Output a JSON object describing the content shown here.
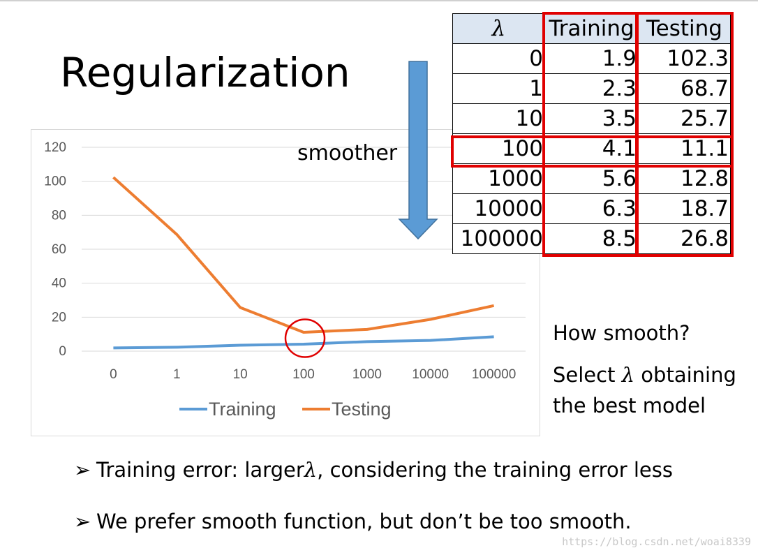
{
  "slide": {
    "title": "Regularization",
    "arrow_label": "smoother",
    "side_question": "How smooth?",
    "side_select_pre": "Select ",
    "lambda_symbol": "λ",
    "side_select_post": " obtaining",
    "side_select_line2": "the best model",
    "bullet_marker": "➢",
    "bullet1_pre": "Training error: larger",
    "bullet1_post": ", considering the training error less",
    "bullet2": "We prefer smooth function, but don’t be too smooth.",
    "watermark": "https://blog.csdn.net/woai8339"
  },
  "table": {
    "headers": [
      "λ",
      "Training",
      "Testing"
    ],
    "rows": [
      [
        "0",
        "1.9",
        "102.3"
      ],
      [
        "1",
        "2.3",
        "68.7"
      ],
      [
        "10",
        "3.5",
        "25.7"
      ],
      [
        "100",
        "4.1",
        "11.1"
      ],
      [
        "1000",
        "5.6",
        "12.8"
      ],
      [
        "10000",
        "6.3",
        "18.7"
      ],
      [
        "100000",
        "8.5",
        "26.8"
      ]
    ]
  },
  "chart_data": {
    "type": "line",
    "categories": [
      "0",
      "1",
      "10",
      "100",
      "1000",
      "10000",
      "100000"
    ],
    "series": [
      {
        "name": "Training",
        "values": [
          1.9,
          2.3,
          3.5,
          4.1,
          5.6,
          6.3,
          8.5
        ],
        "color": "#5b9bd5"
      },
      {
        "name": "Testing",
        "values": [
          102.3,
          68.7,
          25.7,
          11.1,
          12.8,
          18.7,
          26.8
        ],
        "color": "#ed7d31"
      }
    ],
    "yticks": [
      "0",
      "20",
      "40",
      "60",
      "80",
      "100",
      "120"
    ],
    "ylim": [
      0,
      120
    ],
    "grid": true,
    "legend": "bottom",
    "highlight_category": "100",
    "highlight_color": "#e00000"
  }
}
